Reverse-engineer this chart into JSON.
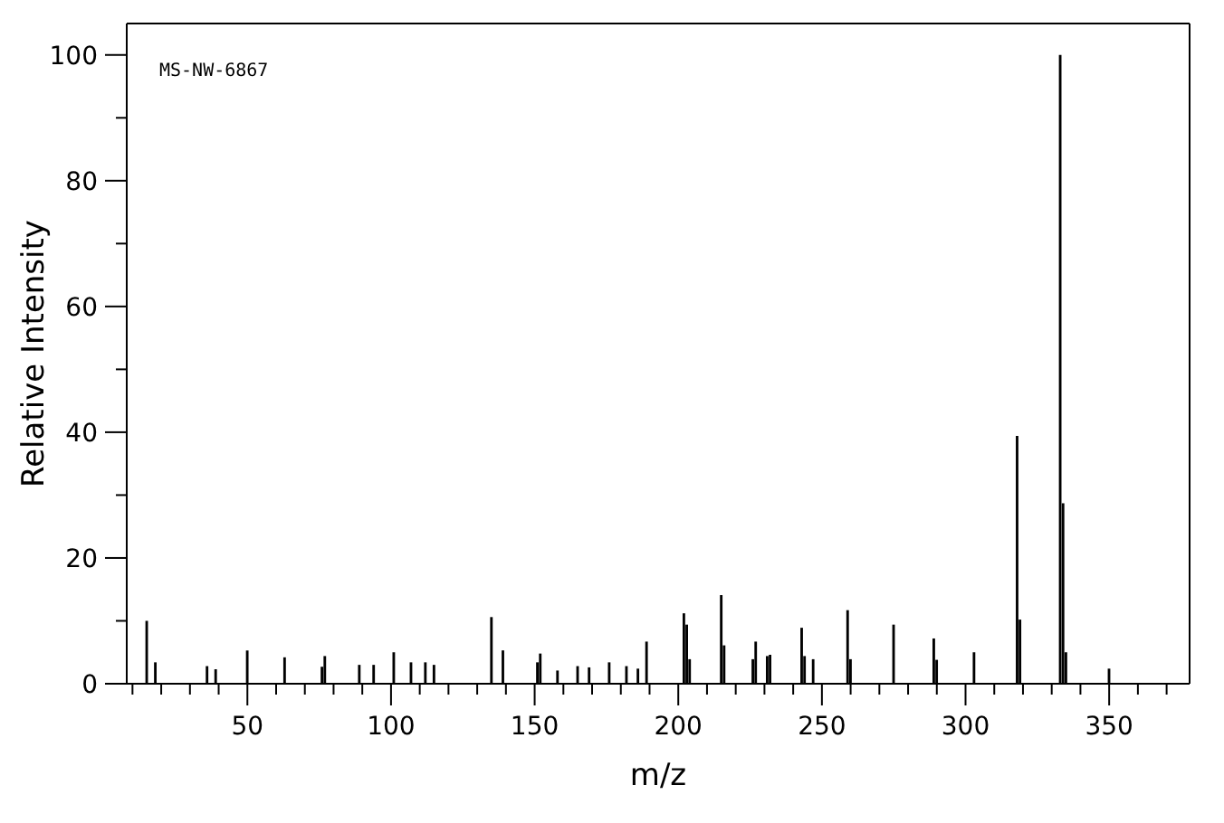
{
  "chart_data": {
    "type": "bar",
    "xlabel": "m/z",
    "ylabel": "Relative Intensity",
    "annotations": [
      "MS-NW-6867"
    ],
    "x": [
      15,
      18,
      36,
      39,
      50,
      63,
      76,
      77,
      89,
      94,
      101,
      107,
      112,
      115,
      135,
      139,
      151,
      152,
      158,
      165,
      169,
      176,
      182,
      186,
      189,
      202,
      203,
      204,
      215,
      216,
      226,
      227,
      231,
      232,
      243,
      244,
      247,
      259,
      260,
      275,
      289,
      290,
      303,
      318,
      319,
      333,
      334,
      335,
      350
    ],
    "values": [
      10,
      3.4,
      2.8,
      2.3,
      5.3,
      4.2,
      2.7,
      4.4,
      3,
      3,
      5,
      3.4,
      3.4,
      3,
      10.6,
      5.3,
      3.4,
      4.8,
      2.1,
      2.8,
      2.6,
      3.4,
      2.8,
      2.4,
      6.7,
      11.2,
      9.4,
      3.9,
      14.1,
      6.1,
      3.9,
      6.7,
      4.4,
      4.6,
      8.9,
      4.4,
      3.9,
      11.7,
      3.9,
      9.4,
      7.2,
      3.8,
      5,
      39.4,
      10.2,
      100,
      28.7,
      5,
      2.4
    ],
    "color": "#000000",
    "xlim": [
      8,
      378
    ],
    "xticks": [
      {
        "value": 10,
        "label": null
      },
      {
        "value": 20,
        "label": null
      },
      {
        "value": 30,
        "label": null
      },
      {
        "value": 40,
        "label": null
      },
      50,
      {
        "value": 60,
        "label": null
      },
      {
        "value": 70,
        "label": null
      },
      {
        "value": 80,
        "label": null
      },
      {
        "value": 90,
        "label": null
      },
      100,
      {
        "value": 110,
        "label": null
      },
      {
        "value": 120,
        "label": null
      },
      {
        "value": 130,
        "label": null
      },
      {
        "value": 140,
        "label": null
      },
      150,
      {
        "value": 160,
        "label": null
      },
      {
        "value": 170,
        "label": null
      },
      {
        "value": 180,
        "label": null
      },
      {
        "value": 190,
        "label": null
      },
      200,
      {
        "value": 210,
        "label": null
      },
      {
        "value": 220,
        "label": null
      },
      {
        "value": 230,
        "label": null
      },
      {
        "value": 240,
        "label": null
      },
      250,
      {
        "value": 260,
        "label": null
      },
      {
        "value": 270,
        "label": null
      },
      {
        "value": 280,
        "label": null
      },
      {
        "value": 290,
        "label": null
      },
      300,
      {
        "value": 310,
        "label": null
      },
      {
        "value": 320,
        "label": null
      },
      {
        "value": 330,
        "label": null
      },
      {
        "value": 340,
        "label": null
      },
      350,
      {
        "value": 360,
        "label": null
      },
      {
        "value": 370,
        "label": null
      }
    ],
    "ylim": [
      0,
      105
    ],
    "yticks": [
      0,
      {
        "value": 10,
        "label": null
      },
      20,
      {
        "value": 30,
        "label": null
      },
      40,
      {
        "value": 50,
        "label": null
      },
      60,
      {
        "value": 70,
        "label": null
      },
      80,
      {
        "value": 90,
        "label": null
      },
      100
    ],
    "grid": false,
    "legend": false
  }
}
